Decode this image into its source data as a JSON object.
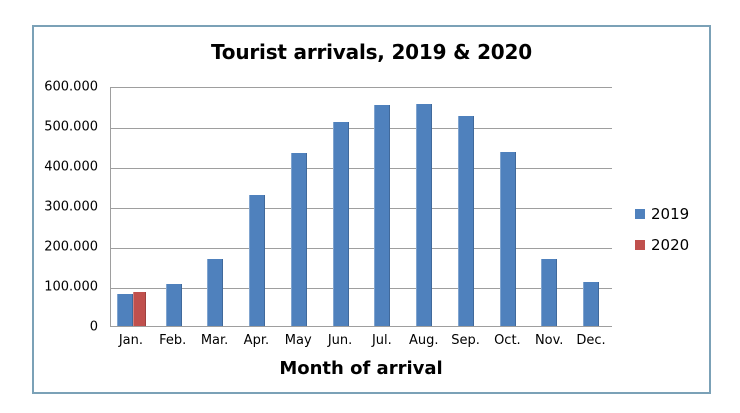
{
  "chart_data": {
    "type": "bar",
    "title": "Tourist arrivals, 2019 & 2020",
    "xlabel": "Month of arrival",
    "ylabel": "",
    "categories": [
      "Jan.",
      "Feb.",
      "Mar.",
      "Apr.",
      "May",
      "Jun.",
      "Jul.",
      "Aug.",
      "Sep.",
      "Oct.",
      "Nov.",
      "Dec."
    ],
    "series": [
      {
        "name": "2019",
        "color": "#4f81bd",
        "values": [
          80000,
          106000,
          168000,
          328000,
          432000,
          510000,
          552000,
          556000,
          525000,
          435000,
          168000,
          110000
        ]
      },
      {
        "name": "2020",
        "color": "#c0504d",
        "values": [
          84000,
          null,
          null,
          null,
          null,
          null,
          null,
          null,
          null,
          null,
          null,
          null
        ]
      }
    ],
    "ylim": [
      0,
      600000
    ],
    "ytick_labels": [
      "600.000",
      "500.000",
      "400.000",
      "300.000",
      "200.000",
      "100.000",
      "0"
    ],
    "grid": true,
    "legend_position": "right",
    "number_format": "thousands-dot"
  },
  "colors": {
    "series_2019": "#4f81bd",
    "series_2020": "#c0504d",
    "gridline": "#9e9e9e",
    "frame_border": "#7ba1b7",
    "background": "#ffffff",
    "text": "#000000"
  }
}
